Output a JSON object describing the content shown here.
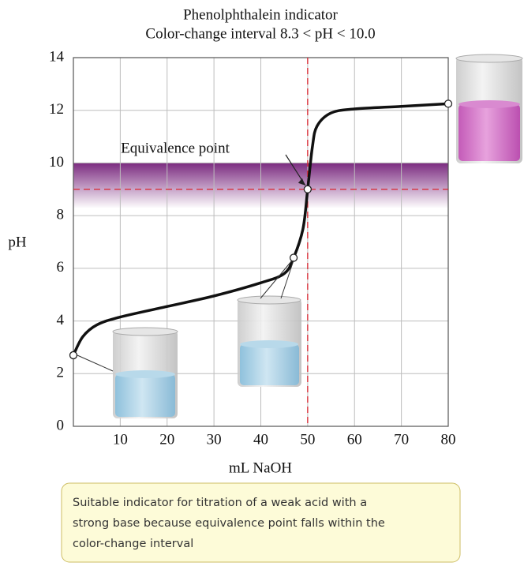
{
  "chart_data": {
    "type": "line",
    "title": "Phenolphthalein indicator",
    "subtitle": "Color-change interval 8.3 < pH < 10.0",
    "x_label": "mL NaOH",
    "y_label": "pH",
    "x": [
      0,
      2,
      5,
      10,
      20,
      30,
      40,
      45,
      47,
      49,
      50,
      51,
      52,
      55,
      60,
      70,
      80
    ],
    "series": [
      {
        "color": "#111111",
        "values": [
          2.7,
          3.4,
          3.85,
          4.15,
          4.55,
          4.95,
          5.45,
          5.8,
          6.4,
          7.5,
          9.0,
          10.6,
          11.4,
          11.9,
          12.05,
          12.15,
          12.25
        ]
      }
    ],
    "markers": {
      "x": [
        0,
        47,
        50,
        80
      ],
      "y": [
        2.7,
        6.4,
        9.0,
        12.25
      ]
    },
    "indicator_band": [
      8.3,
      10.0
    ],
    "band_color": "#7b2b80",
    "equivalence": {
      "x": 50,
      "y": 9.0,
      "color": "#d9232e",
      "label": "Equivalence point"
    },
    "xlim": [
      0,
      80
    ],
    "xticks": [
      10,
      20,
      30,
      40,
      50,
      60,
      70,
      80
    ],
    "ylim": [
      0,
      14
    ],
    "yticks": [
      0,
      2,
      4,
      6,
      8,
      10,
      12,
      14
    ],
    "grid": true,
    "note": [
      "Suitable indicator for titration of a weak acid with a",
      "strong base because equivalence point falls within the",
      "color-change interval"
    ]
  }
}
